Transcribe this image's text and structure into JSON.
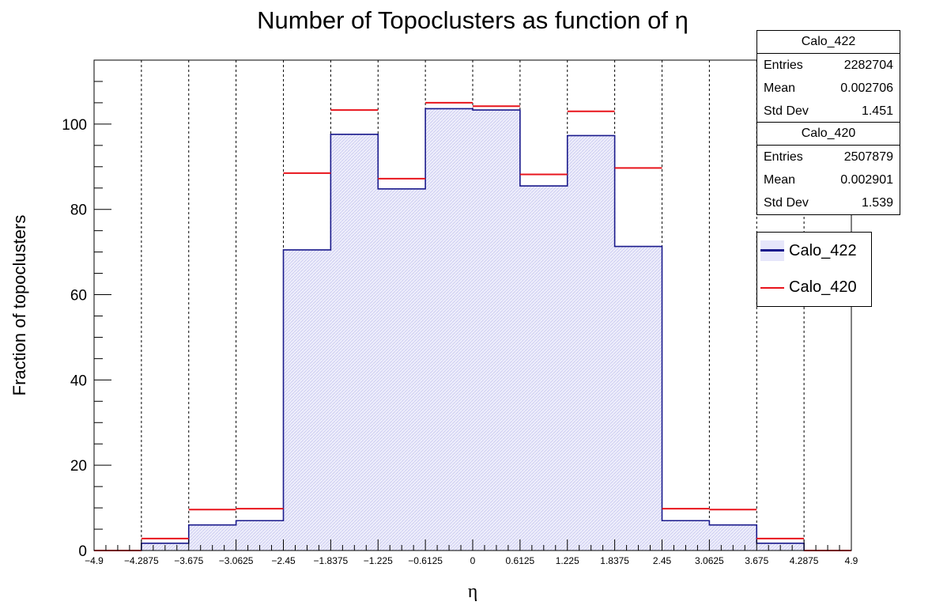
{
  "colors": {
    "calo_422": "#1a1a8c",
    "calo_422_fill": "#e6e6fa",
    "calo_420": "#e8141c"
  },
  "stats": [
    {
      "title": "Calo_422",
      "rows": [
        {
          "label": "Entries",
          "value": "2282704"
        },
        {
          "label": "Mean",
          "value": "0.002706"
        },
        {
          "label": "Std Dev",
          "value": "1.451"
        }
      ]
    },
    {
      "title": "Calo_420",
      "rows": [
        {
          "label": "Entries",
          "value": "2507879"
        },
        {
          "label": "Mean",
          "value": "0.002901"
        },
        {
          "label": "Std Dev",
          "value": "1.539"
        }
      ]
    }
  ],
  "legend": [
    {
      "name": "Calo_422",
      "style": "line-fill",
      "color_key": "calo_422"
    },
    {
      "name": "Calo_420",
      "style": "line",
      "color_key": "calo_420"
    }
  ],
  "chart_data": {
    "type": "bar",
    "title": "Number of Topoclusters as function of η",
    "xlabel": "η",
    "ylabel": "Fraction of topoclusters",
    "xlim": [
      -4.9,
      4.9
    ],
    "ylim": [
      0,
      115
    ],
    "bin_edges": [
      -4.9,
      -4.2875,
      -3.675,
      -3.0625,
      -2.45,
      -1.8375,
      -1.225,
      -0.6125,
      0,
      0.6125,
      1.225,
      1.8375,
      2.45,
      3.0625,
      3.675,
      4.2875,
      4.9
    ],
    "x_tick_labels": [
      "−4.9",
      "−4.2875",
      "−3.675",
      "−3.0625",
      "−2.45",
      "−1.8375",
      "−1.225",
      "−0.6125",
      "0",
      "0.6125",
      "1.225",
      "1.8375",
      "2.45",
      "3.0625",
      "3.675",
      "4.2875",
      "4.9"
    ],
    "y_ticks": [
      0,
      20,
      40,
      60,
      80,
      100
    ],
    "grid": "x-dashed",
    "legend_position": "right",
    "series": [
      {
        "name": "Calo_422",
        "style": "histogram-filled",
        "values": [
          0,
          1.7,
          6,
          7,
          70.5,
          97.6,
          84.8,
          103.6,
          103.3,
          85.5,
          97.3,
          71.3,
          7,
          6,
          1.7,
          0
        ]
      },
      {
        "name": "Calo_420",
        "style": "horizontal-markers",
        "values": [
          0,
          2.8,
          9.6,
          9.8,
          88.5,
          103.3,
          87.2,
          105,
          104.2,
          88.2,
          103,
          89.7,
          9.8,
          9.6,
          2.8,
          0
        ]
      }
    ]
  }
}
